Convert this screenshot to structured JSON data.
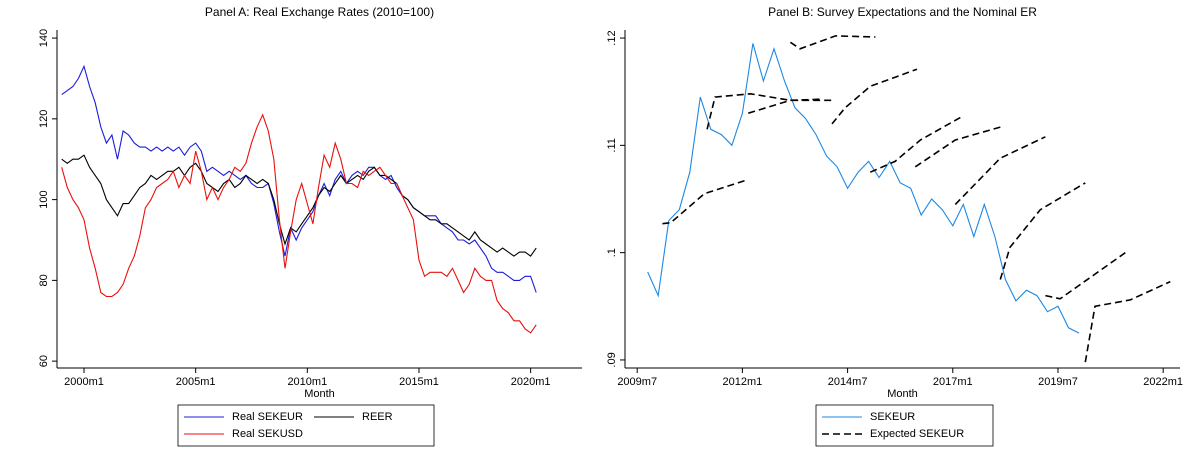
{
  "chart_data": [
    {
      "type": "line",
      "title": "Panel A: Real Exchange Rates (2010=100)",
      "xlabel": "Month",
      "xlim": [
        1998.79,
        2022.3
      ],
      "ylim": [
        58.3,
        142
      ],
      "xticks": [
        {
          "value": 2000,
          "label": "2000m1"
        },
        {
          "value": 2005,
          "label": "2005m1"
        },
        {
          "value": 2010,
          "label": "2010m1"
        },
        {
          "value": 2015,
          "label": "2015m1"
        },
        {
          "value": 2020,
          "label": "2020m1"
        }
      ],
      "yticks": [
        60,
        80,
        100,
        120,
        140
      ],
      "legend_columns": 2,
      "x": [
        1999.0,
        1999.25,
        1999.5,
        1999.75,
        2000.0,
        2000.25,
        2000.5,
        2000.75,
        2001.0,
        2001.25,
        2001.5,
        2001.75,
        2002.0,
        2002.25,
        2002.5,
        2002.75,
        2003.0,
        2003.25,
        2003.5,
        2003.75,
        2004.0,
        2004.25,
        2004.5,
        2004.75,
        2005.0,
        2005.25,
        2005.5,
        2005.75,
        2006.0,
        2006.25,
        2006.5,
        2006.75,
        2007.0,
        2007.25,
        2007.5,
        2007.75,
        2008.0,
        2008.25,
        2008.5,
        2008.75,
        2009.0,
        2009.25,
        2009.5,
        2009.75,
        2010.0,
        2010.25,
        2010.5,
        2010.75,
        2011.0,
        2011.25,
        2011.5,
        2011.75,
        2012.0,
        2012.25,
        2012.5,
        2012.75,
        2013.0,
        2013.25,
        2013.5,
        2013.75,
        2014.0,
        2014.25,
        2014.5,
        2014.75,
        2015.0,
        2015.25,
        2015.5,
        2015.75,
        2016.0,
        2016.25,
        2016.5,
        2016.75,
        2017.0,
        2017.25,
        2017.5,
        2017.75,
        2018.0,
        2018.25,
        2018.5,
        2018.75,
        2019.0,
        2019.25,
        2019.5,
        2019.75,
        2020.0,
        2020.25
      ],
      "series": [
        {
          "name": "Real SEKEUR",
          "color": "#1c1cd8",
          "style": "solid",
          "values": [
            126,
            127,
            128,
            130,
            133,
            128,
            124,
            118,
            114,
            116,
            110,
            117,
            116,
            114,
            113,
            113,
            112,
            113,
            112,
            113,
            112,
            113,
            111,
            113,
            114,
            112,
            107,
            108,
            107,
            106,
            107,
            106,
            105,
            106,
            104,
            103,
            103,
            104,
            99,
            92,
            86,
            93,
            90,
            93,
            95,
            97,
            101,
            104,
            101,
            105,
            107,
            104,
            106,
            107,
            106,
            108,
            108,
            106,
            105,
            106,
            103,
            101,
            100,
            98,
            97,
            96,
            96,
            96,
            94,
            93,
            92,
            90,
            90,
            89,
            90,
            88,
            86,
            83,
            82,
            82,
            81,
            80,
            80,
            81,
            81,
            77
          ]
        },
        {
          "name": "REER",
          "color": "#000000",
          "style": "solid",
          "values": [
            110,
            109,
            110,
            110,
            111,
            108,
            106,
            104,
            100,
            98,
            96,
            99,
            99,
            101,
            103,
            104,
            106,
            105,
            106,
            107,
            107,
            108,
            106,
            108,
            109,
            107,
            104,
            103,
            102,
            104,
            105,
            103,
            104,
            106,
            105,
            104,
            105,
            104,
            100,
            94,
            89,
            93,
            92,
            94,
            96,
            98,
            101,
            103,
            102,
            104,
            106,
            104,
            105,
            106,
            105,
            107,
            108,
            106,
            106,
            105,
            104,
            101,
            100,
            98,
            97,
            96,
            95,
            95,
            94,
            94,
            93,
            92,
            91,
            90,
            92,
            90,
            89,
            88,
            87,
            88,
            87,
            86,
            87,
            87,
            86,
            88
          ]
        },
        {
          "name": "Real SEKUSD",
          "color": "#e8100e",
          "style": "solid",
          "values": [
            108,
            103,
            100,
            98,
            95,
            88,
            83,
            77,
            76,
            76,
            77,
            79,
            83,
            86,
            91,
            98,
            100,
            103,
            104,
            105,
            107,
            103,
            106,
            104,
            112,
            107,
            100,
            103,
            100,
            103,
            105,
            108,
            107,
            109,
            114,
            118,
            121,
            117,
            110,
            95,
            83,
            92,
            100,
            104,
            99,
            94,
            103,
            111,
            108,
            114,
            110,
            104,
            104,
            103,
            107,
            106,
            107,
            108,
            106,
            104,
            104,
            101,
            98,
            95,
            85,
            81,
            82,
            82,
            82,
            81,
            83,
            80,
            77,
            79,
            83,
            81,
            80,
            80,
            75,
            73,
            72,
            70,
            70,
            68,
            67,
            69
          ]
        }
      ]
    },
    {
      "type": "line",
      "title": "Panel B: Survey Expectations and the Nominal ER",
      "xlabel": "Month",
      "xlim": [
        2009.21,
        2022.4
      ],
      "ylim": [
        0.08925,
        0.12075
      ],
      "xticks": [
        {
          "value": 2009.5,
          "label": "2009m7"
        },
        {
          "value": 2012,
          "label": "2012m1"
        },
        {
          "value": 2014.5,
          "label": "2014m7"
        },
        {
          "value": 2017,
          "label": "2017m1"
        },
        {
          "value": 2019.5,
          "label": "2019m7"
        },
        {
          "value": 2022,
          "label": "2022m1"
        }
      ],
      "yticks": [
        {
          "value": 0.09,
          "label": ".09"
        },
        {
          "value": 0.1,
          "label": ".1"
        },
        {
          "value": 0.11,
          "label": ".11"
        },
        {
          "value": 0.12,
          "label": ".12"
        }
      ],
      "legend_columns": 1,
      "series": [
        {
          "name": "SEKEUR",
          "color": "#1e88e5",
          "style": "solid",
          "x": [
            2009.75,
            2010.0,
            2010.25,
            2010.5,
            2010.75,
            2011.0,
            2011.25,
            2011.5,
            2011.75,
            2012.0,
            2012.25,
            2012.5,
            2012.75,
            2013.0,
            2013.25,
            2013.5,
            2013.75,
            2014.0,
            2014.25,
            2014.5,
            2014.75,
            2015.0,
            2015.25,
            2015.5,
            2015.75,
            2016.0,
            2016.25,
            2016.5,
            2016.75,
            2017.0,
            2017.25,
            2017.5,
            2017.75,
            2018.0,
            2018.25,
            2018.5,
            2018.75,
            2019.0,
            2019.25,
            2019.5,
            2019.75,
            2020.0
          ],
          "values": [
            0.0982,
            0.096,
            0.103,
            0.104,
            0.1075,
            0.1145,
            0.1115,
            0.111,
            0.11,
            0.113,
            0.1195,
            0.116,
            0.119,
            0.116,
            0.1135,
            0.1125,
            0.111,
            0.109,
            0.108,
            0.106,
            0.1075,
            0.1085,
            0.107,
            0.1085,
            0.1065,
            0.106,
            0.1035,
            0.105,
            0.104,
            0.1025,
            0.1045,
            0.1015,
            0.1045,
            0.1015,
            0.0975,
            0.0955,
            0.0965,
            0.096,
            0.0945,
            0.095,
            0.093,
            0.0925
          ]
        },
        {
          "name": "Expected SEKEUR",
          "color": "#000000",
          "style": "dashed",
          "x": [
            2010.1,
            2010.3,
            2011.1,
            2012.05,
            null,
            2011.16,
            2011.35,
            2012.19,
            2013.14,
            2014.16,
            null,
            2012.14,
            2013.14,
            2013.85,
            null,
            2013.14,
            2013.37,
            2014.21,
            2015.16,
            null,
            2014.13,
            2014.44,
            2015.04,
            2016.15,
            null,
            2015.04,
            2015.63,
            2016.23,
            2017.18,
            null,
            2016.11,
            2017.06,
            2018.13,
            null,
            2017.06,
            2018.13,
            2019.2,
            null,
            2018.13,
            2018.36,
            2019.08,
            2020.15,
            null,
            2019.2,
            2019.55,
            2021.1,
            null,
            2020.15,
            2020.38,
            2021.22,
            2022.17
          ],
          "values": [
            0.1027,
            0.1028,
            0.1055,
            0.1067,
            null,
            0.1115,
            0.1145,
            0.1148,
            0.1142,
            0.1142,
            null,
            0.113,
            0.1142,
            0.1143,
            null,
            0.1196,
            0.119,
            0.1202,
            0.1201,
            null,
            0.112,
            0.1135,
            0.1155,
            0.1171,
            null,
            0.1075,
            0.1085,
            0.1105,
            0.1126,
            null,
            0.108,
            0.1105,
            0.1117,
            null,
            0.1045,
            0.1088,
            0.1108,
            null,
            0.0975,
            0.1005,
            0.104,
            0.1065,
            null,
            0.096,
            0.0957,
            0.1,
            null,
            0.0898,
            0.095,
            0.0956,
            0.0973
          ]
        }
      ]
    }
  ]
}
